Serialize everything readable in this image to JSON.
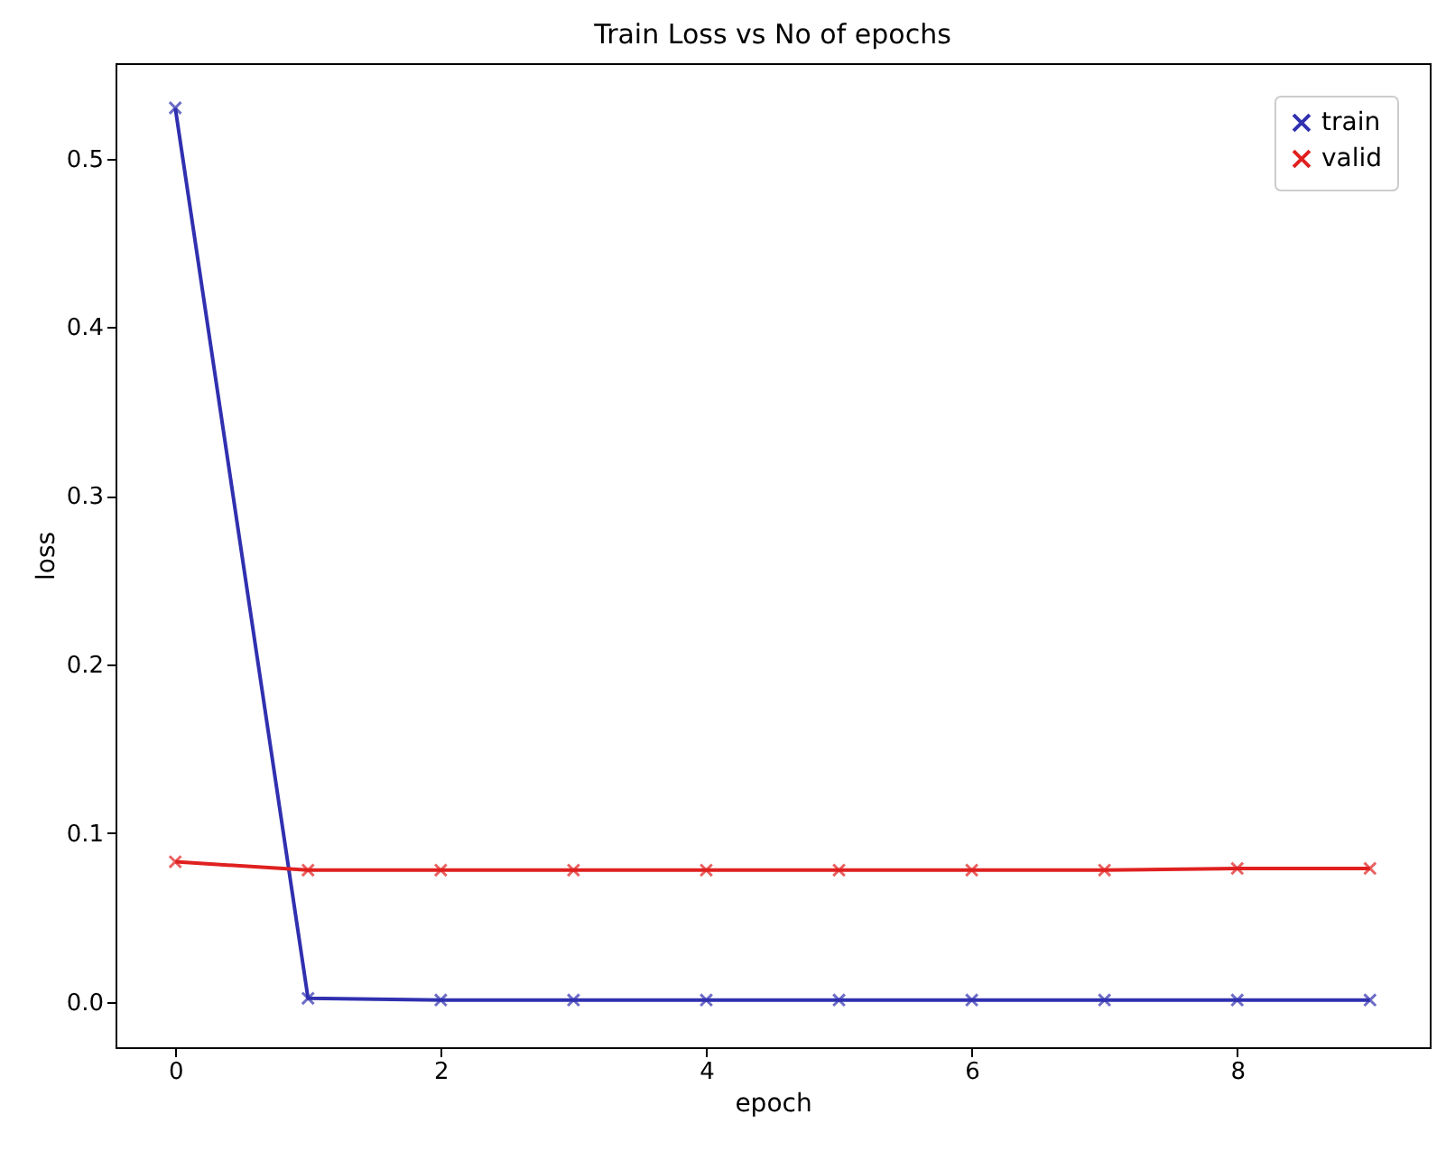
{
  "chart_data": {
    "type": "line",
    "title": "Train Loss vs No of epochs",
    "xlabel": "epoch",
    "ylabel": "loss",
    "x": [
      0,
      1,
      2,
      3,
      4,
      5,
      6,
      7,
      8,
      9
    ],
    "series": [
      {
        "name": "train",
        "color": "#3030b0",
        "values": [
          0.53,
          0.002,
          0.001,
          0.001,
          0.001,
          0.001,
          0.001,
          0.001,
          0.001,
          0.001
        ]
      },
      {
        "name": "valid",
        "color": "#e02020",
        "values": [
          0.083,
          0.078,
          0.078,
          0.078,
          0.078,
          0.078,
          0.078,
          0.078,
          0.079,
          0.079
        ]
      }
    ],
    "xlim": [
      -0.45,
      9.45
    ],
    "ylim": [
      -0.027,
      0.5565
    ],
    "xticks": [
      0,
      2,
      4,
      6,
      8
    ],
    "yticks": [
      {
        "value": 0,
        "label": "0.0"
      },
      {
        "value": 0.1,
        "label": "0.1"
      },
      {
        "value": 0.2,
        "label": "0.2"
      },
      {
        "value": 0.3,
        "label": "0.3"
      },
      {
        "value": 0.4,
        "label": "0.4"
      },
      {
        "value": 0.5,
        "label": "0.5"
      }
    ],
    "marker": "cross",
    "line_style": "solid",
    "grid": false,
    "legend": "top right"
  }
}
